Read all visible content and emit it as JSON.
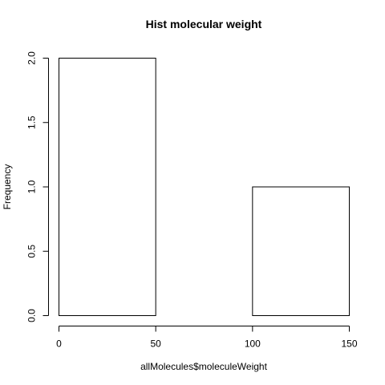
{
  "chart_data": {
    "type": "histogram",
    "title": "Hist molecular weight",
    "xlabel": "allMolecules$moleculeWeight",
    "ylabel": "Frequency",
    "bins": [
      {
        "x0": 0,
        "x1": 50,
        "count": 2
      },
      {
        "x0": 50,
        "x1": 100,
        "count": 0
      },
      {
        "x0": 100,
        "x1": 150,
        "count": 1
      }
    ],
    "xlim": [
      0,
      150
    ],
    "ylim": [
      0,
      2
    ],
    "x_ticks": [
      0,
      50,
      100,
      150
    ],
    "x_tick_labels": [
      "0",
      "50",
      "100",
      "150"
    ],
    "y_ticks": [
      0,
      0.5,
      1,
      1.5,
      2
    ],
    "y_tick_labels": [
      "0.0",
      "0.5",
      "1.0",
      "1.5",
      "2.0"
    ],
    "grid": false,
    "bar_fill": "#ffffff",
    "bar_stroke": "#000000"
  }
}
